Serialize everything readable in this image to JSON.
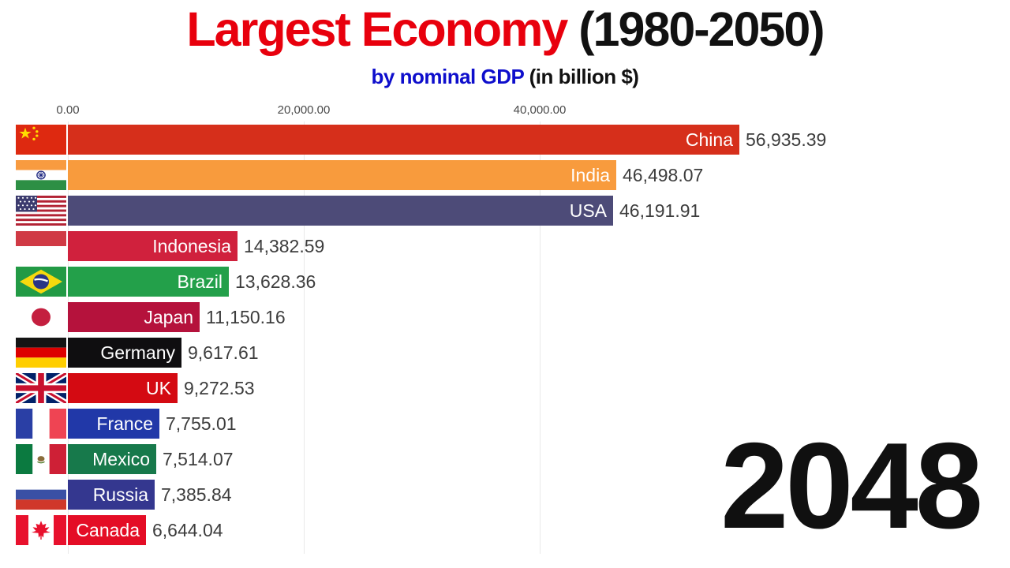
{
  "title": {
    "main": "Largest Economy",
    "suffix": " (1980-2050)"
  },
  "subtitle": {
    "main": "by nominal GDP",
    "suffix": " (in billion $)"
  },
  "year_label": "2048",
  "axis": {
    "tick_interval": 20000,
    "ticks": [
      {
        "value": 0,
        "label": "0.00"
      },
      {
        "value": 20000,
        "label": "20,000.00"
      },
      {
        "value": 40000,
        "label": "40,000.00"
      }
    ]
  },
  "colors": {
    "title_red": "#e8000d",
    "subtitle_blue": "#0e0ecc",
    "value_text": "#3d3d3d",
    "tick_text": "#4a4a4a",
    "year_text": "#101010",
    "background": "#ffffff"
  },
  "chart_data": {
    "type": "bar",
    "orientation": "horizontal",
    "title": "Largest Economy (1980-2050)",
    "subtitle": "by nominal GDP (in billion $)",
    "year": "2048",
    "unit": "billion $",
    "x_ticks": [
      "0.00",
      "20,000.00",
      "40,000.00"
    ],
    "xlim": [
      0,
      58000
    ],
    "grid": true,
    "bars": [
      {
        "rank": 1,
        "country": "China",
        "value": 56935.39,
        "value_label": "56,935.39",
        "color": "#d62f1b",
        "flag": "china"
      },
      {
        "rank": 2,
        "country": "India",
        "value": 46498.07,
        "value_label": "46,498.07",
        "color": "#f89b3d",
        "flag": "india"
      },
      {
        "rank": 3,
        "country": "USA",
        "value": 46191.91,
        "value_label": "46,191.91",
        "color": "#4d4b78",
        "flag": "usa"
      },
      {
        "rank": 4,
        "country": "Indonesia",
        "value": 14382.59,
        "value_label": "14,382.59",
        "color": "#d0213d",
        "flag": "indonesia"
      },
      {
        "rank": 5,
        "country": "Brazil",
        "value": 13628.36,
        "value_label": "13,628.36",
        "color": "#23a04a",
        "flag": "brazil"
      },
      {
        "rank": 6,
        "country": "Japan",
        "value": 11150.16,
        "value_label": "11,150.16",
        "color": "#b5123c",
        "flag": "japan"
      },
      {
        "rank": 7,
        "country": "Germany",
        "value": 9617.61,
        "value_label": "9,617.61",
        "color": "#0f0e10",
        "flag": "germany"
      },
      {
        "rank": 8,
        "country": "UK",
        "value": 9272.53,
        "value_label": "9,272.53",
        "color": "#d40a12",
        "flag": "uk"
      },
      {
        "rank": 9,
        "country": "France",
        "value": 7755.01,
        "value_label": "7,755.01",
        "color": "#2138a8",
        "flag": "france"
      },
      {
        "rank": 10,
        "country": "Mexico",
        "value": 7514.07,
        "value_label": "7,514.07",
        "color": "#17794b",
        "flag": "mexico"
      },
      {
        "rank": 11,
        "country": "Russia",
        "value": 7385.84,
        "value_label": "7,385.84",
        "color": "#34378f",
        "flag": "russia"
      },
      {
        "rank": 12,
        "country": "Canada",
        "value": 6644.04,
        "value_label": "6,644.04",
        "color": "#e40d26",
        "flag": "canada"
      }
    ]
  }
}
